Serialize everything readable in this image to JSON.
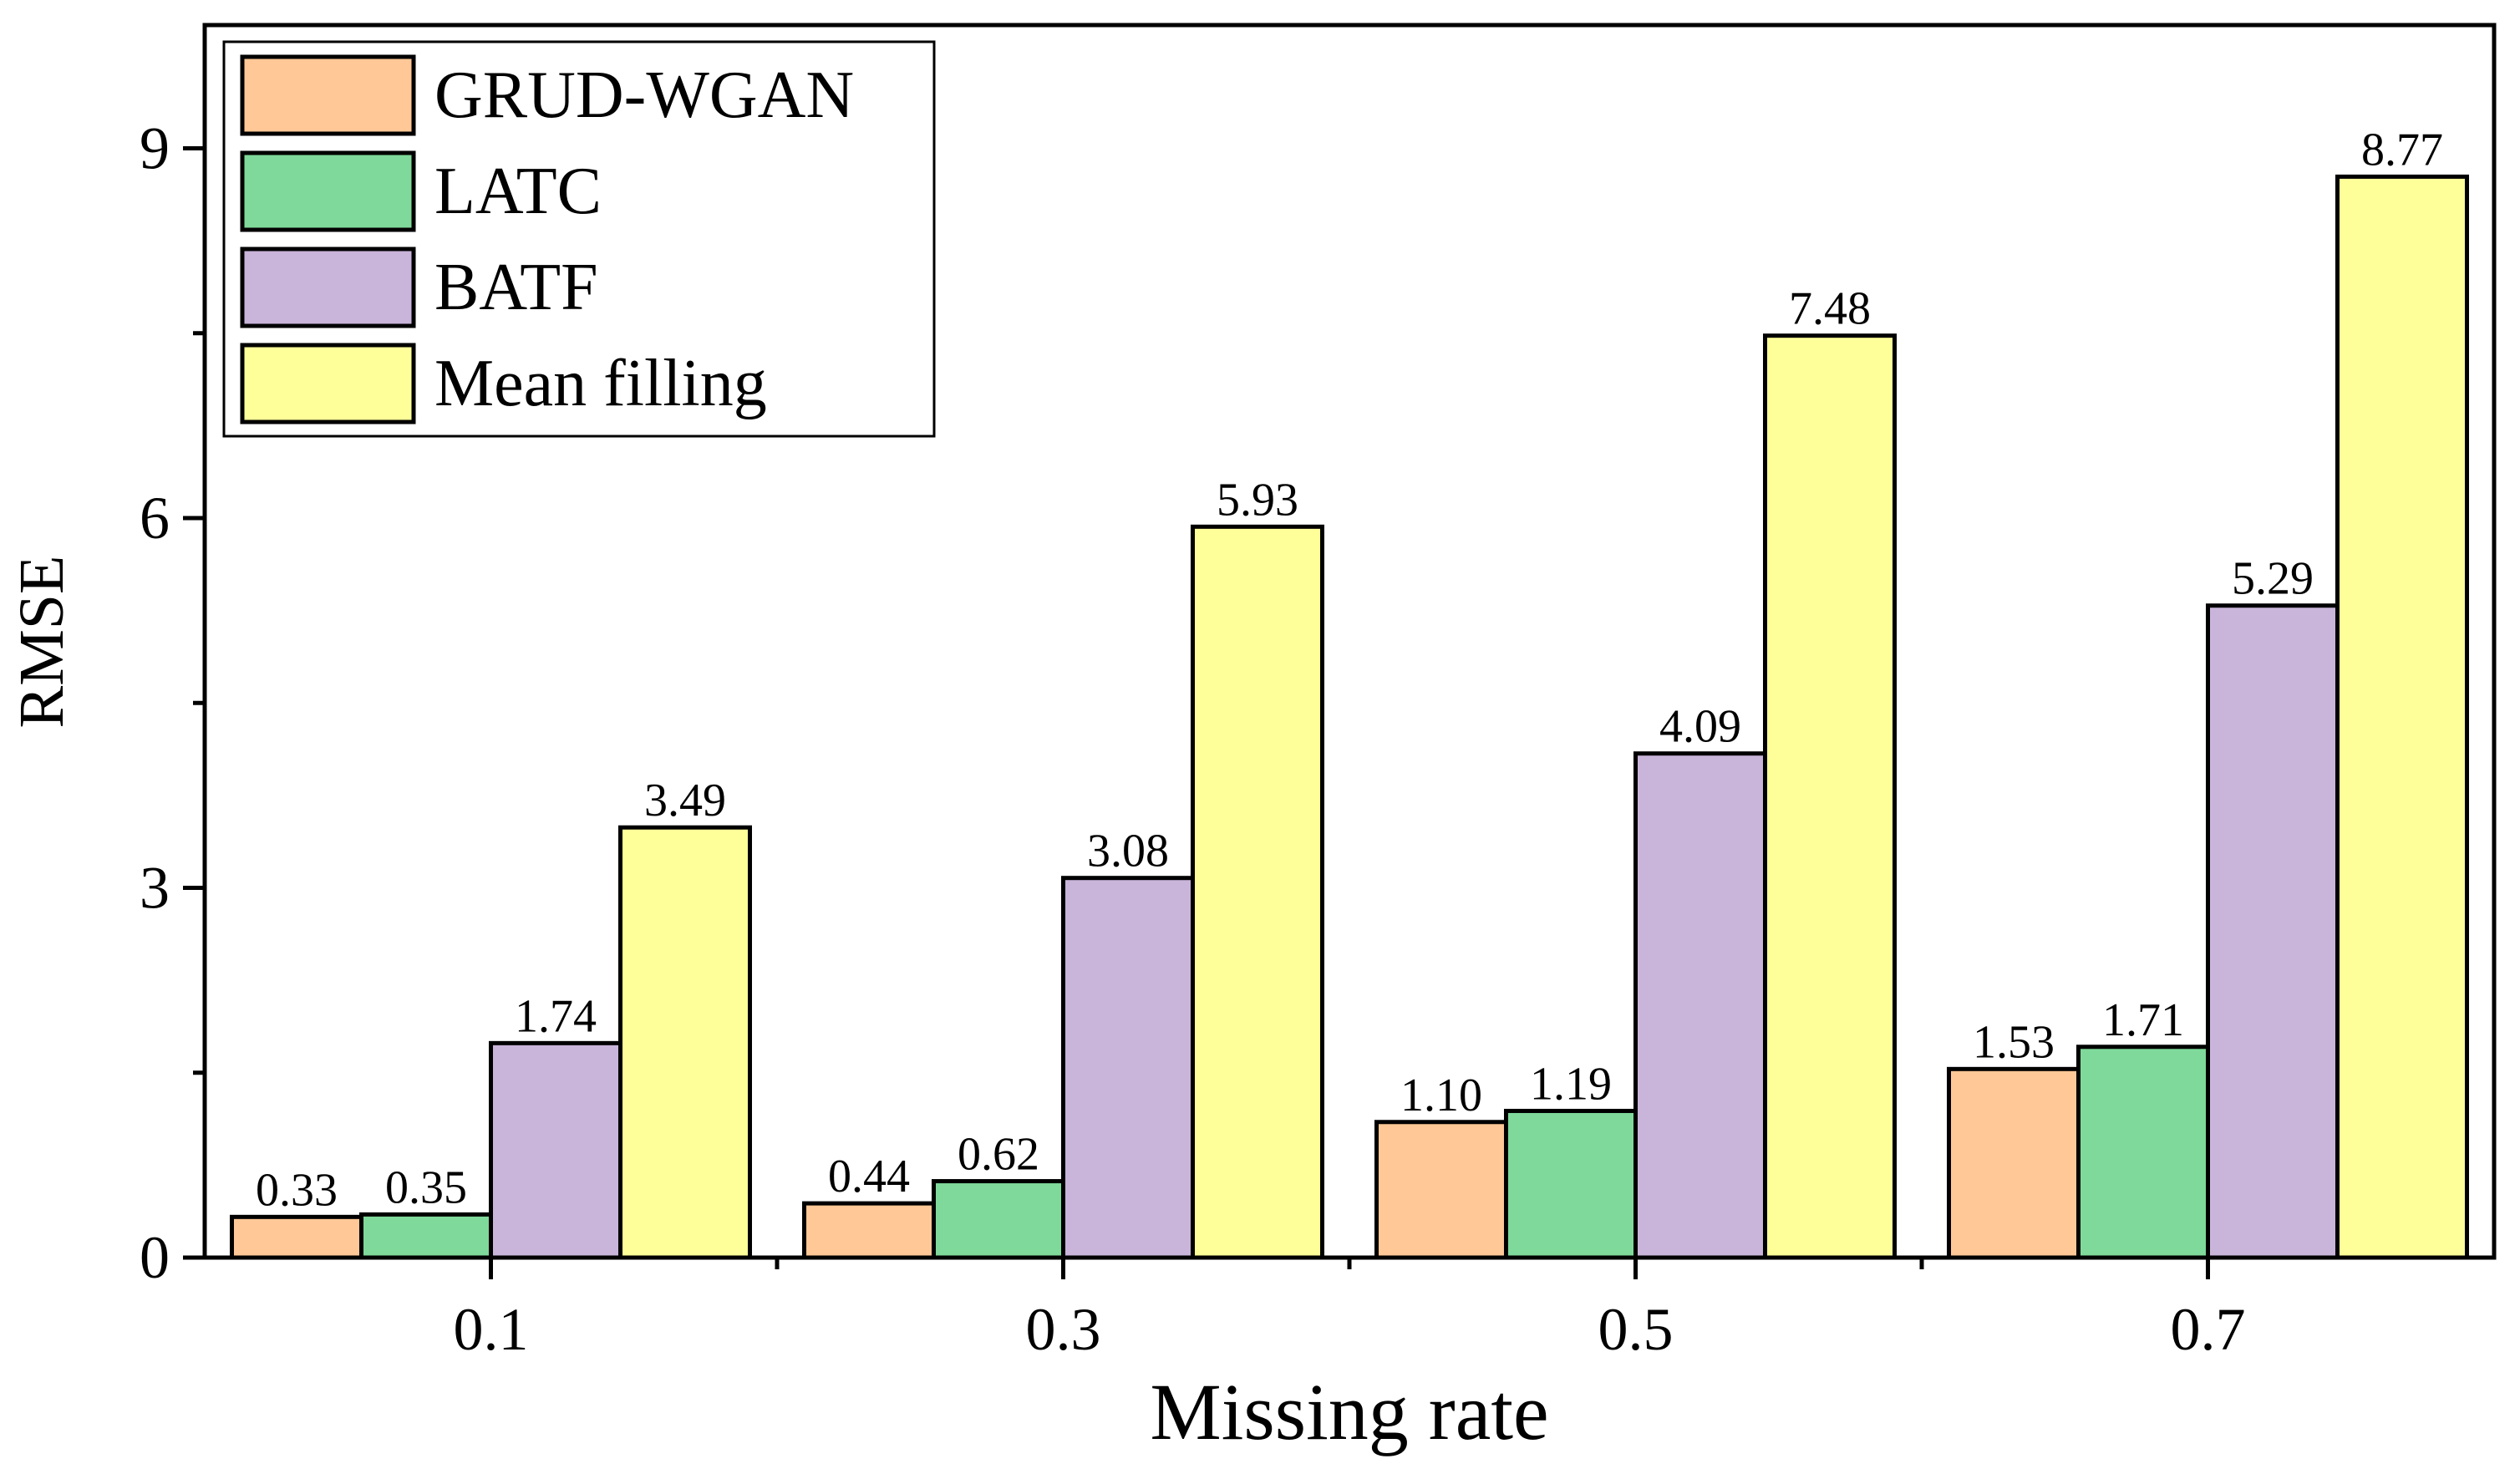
{
  "chart_data": {
    "type": "bar",
    "xlabel": "Missing rate",
    "ylabel": "RMSE",
    "categories": [
      "0.1",
      "0.3",
      "0.5",
      "0.7"
    ],
    "ylim": [
      0,
      10
    ],
    "yticks": [
      "0",
      "3",
      "6",
      "9"
    ],
    "ytick_values": [
      0,
      3,
      6,
      9
    ],
    "grid": false,
    "legend_position": "top-left",
    "series": [
      {
        "name": "GRUD-WGAN",
        "color": "#FFC896",
        "values": [
          0.33,
          0.44,
          1.1,
          1.53
        ],
        "labels": [
          "0.33",
          "0.44",
          "1.10",
          "1.53"
        ]
      },
      {
        "name": "LATC",
        "color": "#7FD99A",
        "values": [
          0.35,
          0.62,
          1.19,
          1.71
        ],
        "labels": [
          "0.35",
          "0.62",
          "1.19",
          "1.71"
        ]
      },
      {
        "name": "BATF",
        "color": "#C9B4DA",
        "values": [
          1.74,
          3.08,
          4.09,
          5.29
        ],
        "labels": [
          "1.74",
          "3.08",
          "4.09",
          "5.29"
        ]
      },
      {
        "name": "Mean filling",
        "color": "#FFFF99",
        "values": [
          3.49,
          5.93,
          7.48,
          8.77
        ],
        "labels": [
          "3.49",
          "5.93",
          "7.48",
          "8.77"
        ]
      }
    ]
  }
}
